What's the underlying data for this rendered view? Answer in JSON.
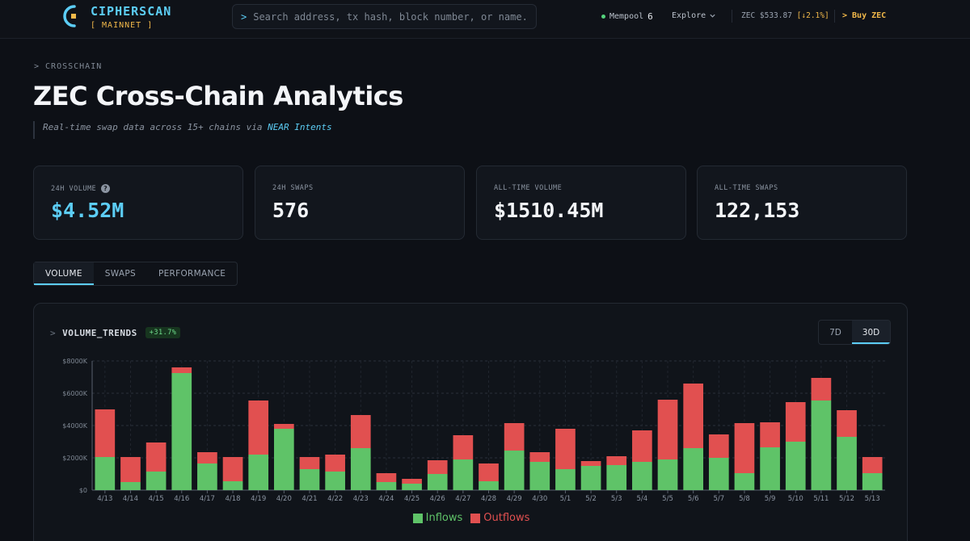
{
  "header": {
    "brand": "CIPHERSCAN",
    "network": "[ MAINNET ]",
    "search_prompt": ">",
    "search_placeholder": "Search address, tx hash, block number, or name..",
    "mempool_label": "Mempool",
    "mempool_count": "6",
    "explore_label": "Explore",
    "price_label": "ZEC $533.87",
    "price_change": "[↓2.1%]",
    "buy_label": "> Buy ZEC"
  },
  "page": {
    "breadcrumb": "> CROSSCHAIN",
    "title": "ZEC Cross-Chain Analytics",
    "subtitle_prefix": "Real-time swap data across 15+ chains via ",
    "subtitle_link": "NEAR Intents"
  },
  "stats": [
    {
      "label": "24H VOLUME",
      "value": "$4.52M"
    },
    {
      "label": "24H SWAPS",
      "value": "576"
    },
    {
      "label": "ALL-TIME VOLUME",
      "value": "$1510.45M"
    },
    {
      "label": "ALL-TIME SWAPS",
      "value": "122,153"
    }
  ],
  "tabs": [
    "VOLUME",
    "SWAPS",
    "PERFORMANCE"
  ],
  "panel": {
    "prompt": ">",
    "title": "VOLUME_TRENDS",
    "badge": "+31.7%",
    "ranges": [
      "7D",
      "30D"
    ]
  },
  "colors": {
    "inflow": "#5fc368",
    "outflow": "#e15050",
    "accent": "#5ccdf5"
  },
  "chart_data": {
    "type": "bar",
    "stacked": true,
    "categories": [
      "4/13",
      "4/14",
      "4/15",
      "4/16",
      "4/17",
      "4/18",
      "4/19",
      "4/20",
      "4/21",
      "4/22",
      "4/23",
      "4/24",
      "4/25",
      "4/26",
      "4/27",
      "4/28",
      "4/29",
      "4/30",
      "5/1",
      "5/2",
      "5/3",
      "5/4",
      "5/5",
      "5/6",
      "5/7",
      "5/8",
      "5/9",
      "5/10",
      "5/11",
      "5/12",
      "5/13"
    ],
    "series": [
      {
        "name": "Inflows",
        "values": [
          2050,
          500,
          1150,
          7250,
          1650,
          550,
          2200,
          3800,
          1300,
          1150,
          2600,
          500,
          400,
          1000,
          1900,
          550,
          2450,
          1750,
          1300,
          1500,
          1550,
          1750,
          1900,
          2600,
          2000,
          1050,
          2650,
          3000,
          5550,
          3300,
          1050
        ]
      },
      {
        "name": "Outflows",
        "values": [
          2950,
          1550,
          1800,
          350,
          700,
          1500,
          3350,
          300,
          750,
          1050,
          2050,
          550,
          300,
          850,
          1500,
          1100,
          1700,
          600,
          2500,
          300,
          550,
          1950,
          3700,
          4000,
          1450,
          3100,
          1550,
          2450,
          1400,
          1650,
          1000
        ]
      }
    ],
    "y_ticks": [
      "$0",
      "$2000K",
      "$4000K",
      "$6000K",
      "$8000K"
    ],
    "ylim": [
      0,
      8000
    ],
    "legend": [
      "Inflows",
      "Outflows"
    ],
    "legend_position": "bottom",
    "grid": true
  }
}
